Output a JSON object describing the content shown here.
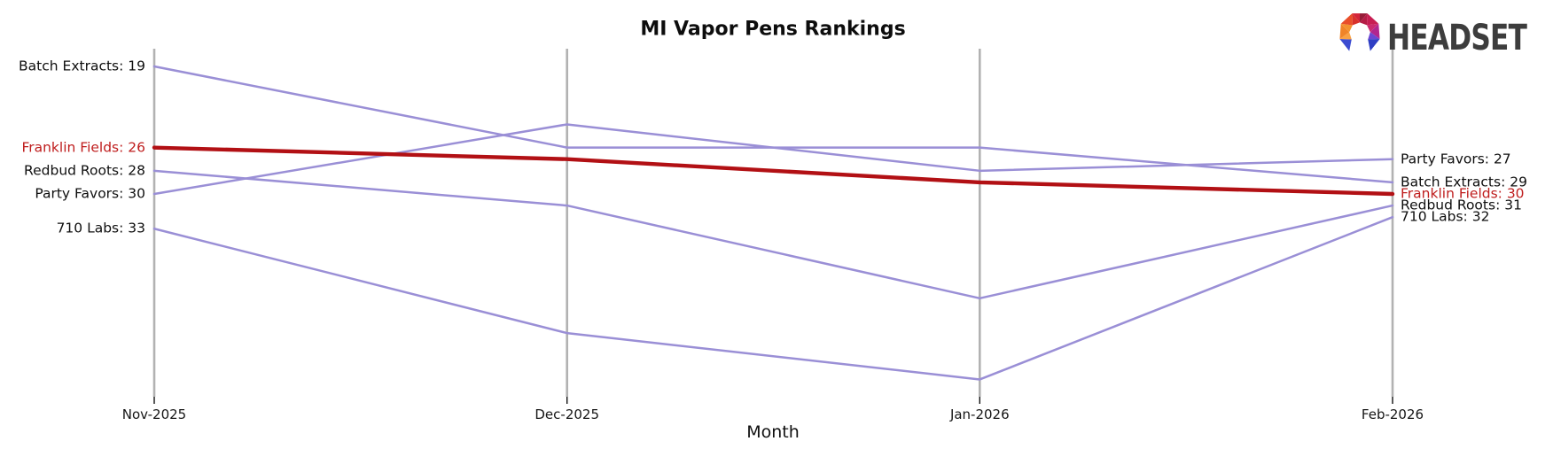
{
  "title": "MI Vapor Pens Rankings",
  "xlabel": "Month",
  "logo": {
    "text": "HEADSET",
    "icon": "headset-gem-horseshoe"
  },
  "colors": {
    "line_default": "#9a8fd6",
    "line_highlight": "#b21014",
    "label_highlight_text": "#bf1d1d",
    "axis_line": "#b2b2b2",
    "tick_mark": "#111111",
    "text": "#111111"
  },
  "chart_data": {
    "type": "line",
    "subtype": "bump-ranking-chart",
    "title": "MI Vapor Pens Rankings",
    "xlabel": "Month",
    "ylabel": "",
    "x": [
      "Nov-2025",
      "Dec-2025",
      "Jan-2026",
      "Feb-2026"
    ],
    "y_axis_note": "rank value; lower rank is drawn higher; no y tick labels shown",
    "ylim": [
      19,
      46
    ],
    "y_inverted": true,
    "grid": "vertical axis lines only, one per month",
    "legend_position": "inline start/end labels",
    "series": [
      {
        "name": "Batch Extracts",
        "values": [
          19,
          26,
          26,
          29
        ],
        "highlight": false,
        "start_label": "Batch Extracts: 19",
        "end_label": "Batch Extracts: 29"
      },
      {
        "name": "Franklin Fields",
        "values": [
          26,
          27,
          29,
          30
        ],
        "highlight": true,
        "start_label": "Franklin Fields: 26",
        "end_label": "Franklin Fields: 30"
      },
      {
        "name": "Redbud Roots",
        "values": [
          28,
          31,
          39,
          31
        ],
        "highlight": false,
        "start_label": "Redbud Roots: 28",
        "end_label": "Redbud Roots: 31"
      },
      {
        "name": "Party Favors",
        "values": [
          30,
          24,
          28,
          27
        ],
        "highlight": false,
        "start_label": "Party Favors: 30",
        "end_label": "Party Favors: 27"
      },
      {
        "name": "710 Labs",
        "values": [
          33,
          42,
          46,
          32
        ],
        "highlight": false,
        "start_label": "710 Labs: 33",
        "end_label": "710 Labs: 32"
      }
    ]
  }
}
